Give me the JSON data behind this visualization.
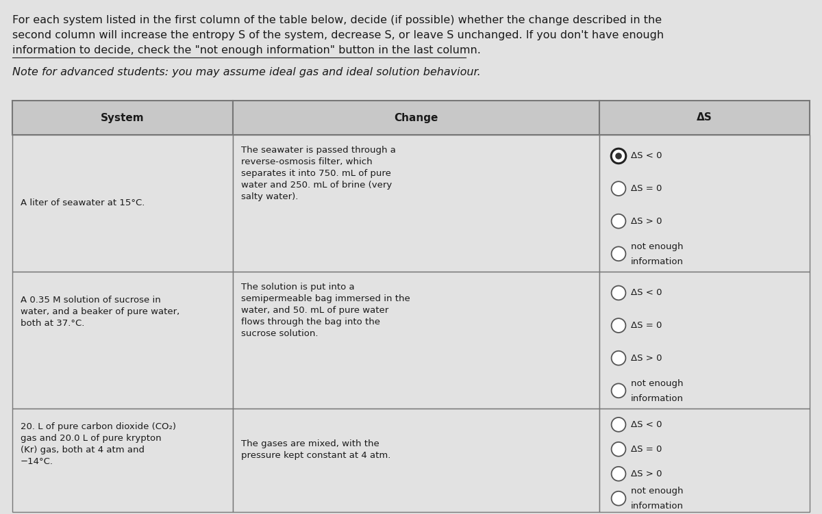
{
  "bg_color": "#e2e2e2",
  "header_bg": "#c8c8c8",
  "cell_bg": "#e2e2e2",
  "border_color": "#777777",
  "text_color": "#1a1a1a",
  "intro_line1": "For each system listed in the first column of the table below, decide (if possible) whether the change described in the",
  "intro_line2": "second column will increase the entropy S of the system, decrease S, or leave S unchanged. If you don't have enough",
  "intro_line3": "information to decide, check the \"not enough information\" button in the last column.",
  "note_text": "Note for advanced students: you may assume ideal gas and ideal solution behaviour.",
  "col_headers": [
    "System",
    "Change",
    "ΔS"
  ],
  "rows": [
    {
      "system": "A liter of seawater at 15°C.",
      "change_lines": [
        "The seawater is passed through a",
        "reverse-osmosis filter, which",
        "separates it into 750. mL of pure",
        "water and 250. mL of brine (very",
        "salty water)."
      ],
      "options": [
        "ΔS < 0",
        "ΔS = 0",
        "ΔS > 0",
        "not enough\ninformation"
      ],
      "selected": 0
    },
    {
      "system_lines": [
        "A 0.35 M solution of sucrose in",
        "water, and a beaker of pure water,",
        "both at 37.°C."
      ],
      "change_lines": [
        "The solution is put into a",
        "semipermeable bag immersed in the",
        "water, and 50. mL of pure water",
        "flows through the bag into the",
        "sucrose solution."
      ],
      "options": [
        "ΔS < 0",
        "ΔS = 0",
        "ΔS > 0",
        "not enough\ninformation"
      ],
      "selected": null
    },
    {
      "system_lines": [
        "20. L of pure carbon dioxide (CO₂)",
        "gas and 20.0 L of pure krypton",
        "(Kr) gas, both at 4 atm and",
        "−14°C."
      ],
      "change_lines": [
        "The gases are mixed, with the",
        "pressure kept constant at 4 atm."
      ],
      "options": [
        "ΔS < 0",
        "ΔS = 0",
        "ΔS > 0",
        "not enough\ninformation"
      ],
      "selected": null
    }
  ],
  "figsize": [
    12.0,
    7.51
  ],
  "dpi": 100
}
